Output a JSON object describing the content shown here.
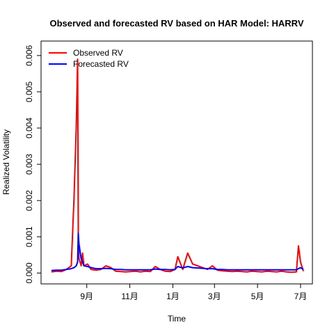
{
  "chart_data": {
    "type": "line",
    "title": "Observed and forecasted RV based on HAR Model: HARRV",
    "xlabel": "Time",
    "ylabel": "Realized Volatility",
    "x_ticks": [
      "9月",
      "11月",
      "1月",
      "3月",
      "5月",
      "7月"
    ],
    "y_ticks": [
      "0.000",
      "0.001",
      "0.002",
      "0.003",
      "0.004",
      "0.005",
      "0.006"
    ],
    "ylim": [
      -0.0003,
      0.0064
    ],
    "grid": false,
    "legend": "top-left",
    "x": [
      "2020-07-13",
      "2020-07-20",
      "2020-07-27",
      "2020-08-03",
      "2020-08-10",
      "2020-08-14",
      "2020-08-17",
      "2020-08-19",
      "2020-08-20",
      "2020-08-21",
      "2020-08-24",
      "2020-08-26",
      "2020-08-28",
      "2020-09-02",
      "2020-09-07",
      "2020-09-14",
      "2020-09-21",
      "2020-09-28",
      "2020-10-05",
      "2020-10-12",
      "2020-10-19",
      "2020-10-26",
      "2020-11-02",
      "2020-11-09",
      "2020-11-16",
      "2020-11-23",
      "2020-11-30",
      "2020-12-07",
      "2020-12-14",
      "2020-12-21",
      "2020-12-28",
      "2021-01-04",
      "2021-01-08",
      "2021-01-15",
      "2021-01-22",
      "2021-01-29",
      "2021-02-05",
      "2021-02-12",
      "2021-02-19",
      "2021-02-26",
      "2021-03-05",
      "2021-03-12",
      "2021-03-19",
      "2021-03-26",
      "2021-04-02",
      "2021-04-09",
      "2021-04-16",
      "2021-04-23",
      "2021-04-30",
      "2021-05-07",
      "2021-05-14",
      "2021-05-21",
      "2021-05-28",
      "2021-06-04",
      "2021-06-11",
      "2021-06-18",
      "2021-06-25",
      "2021-06-28",
      "2021-07-01",
      "2021-07-05"
    ],
    "series": [
      {
        "name": "Observed RV",
        "color": "#ff0000",
        "values": [
          3e-05,
          5e-05,
          4e-05,
          0.0001,
          0.0002,
          0.0021,
          0.004,
          0.0059,
          0.0009,
          0.0004,
          0.0002,
          0.00055,
          0.0002,
          0.00025,
          0.0001,
          8e-05,
          0.0001,
          0.0002,
          0.00015,
          5e-05,
          4e-05,
          3e-05,
          4e-05,
          5e-05,
          3e-05,
          5e-05,
          4e-05,
          0.00018,
          0.0001,
          5e-05,
          4e-05,
          0.0001,
          0.00045,
          0.0001,
          0.00055,
          0.00025,
          0.0002,
          0.00015,
          0.0001,
          0.0002,
          8e-05,
          6e-05,
          5e-05,
          4e-05,
          5e-05,
          4e-05,
          3e-05,
          5e-05,
          4e-05,
          3e-05,
          5e-05,
          4e-05,
          3e-05,
          5e-05,
          3e-05,
          2e-05,
          3e-05,
          0.00075,
          0.0003,
          5e-05
        ]
      },
      {
        "name": "Forecasted RV",
        "color": "#0000ff",
        "values": [
          7e-05,
          8e-05,
          8e-05,
          0.0001,
          0.00012,
          0.00015,
          0.0002,
          0.0003,
          0.0011,
          0.0008,
          0.0004,
          0.0003,
          0.0002,
          0.00018,
          0.00015,
          0.00012,
          0.00012,
          0.00013,
          0.00012,
          0.0001,
          0.0001,
          9e-05,
          9e-05,
          9e-05,
          9e-05,
          9e-05,
          9e-05,
          0.00011,
          0.0001,
          0.0001,
          9e-05,
          0.0001,
          0.00018,
          0.00014,
          0.00018,
          0.00015,
          0.00014,
          0.00013,
          0.00012,
          0.00012,
          0.0001,
          0.0001,
          9e-05,
          9e-05,
          9e-05,
          9e-05,
          9e-05,
          9e-05,
          9e-05,
          9e-05,
          9e-05,
          9e-05,
          9e-05,
          9e-05,
          9e-05,
          9e-05,
          9e-05,
          0.00012,
          0.00015,
          0.0001
        ]
      }
    ]
  }
}
